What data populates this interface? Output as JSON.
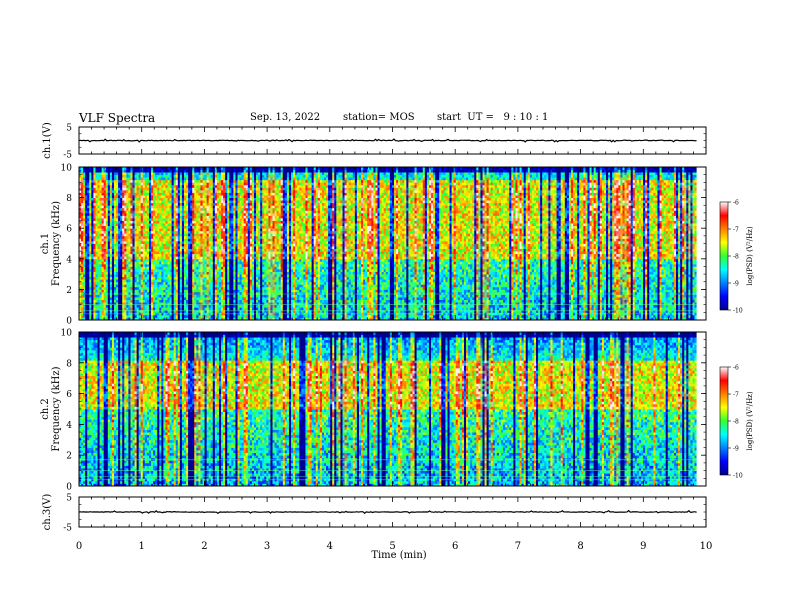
{
  "header": {
    "title": "VLF Spectra",
    "date": "Sep. 13, 2022",
    "station": "station= MOS",
    "start_time": "start  UT =   9 : 10 : 1"
  },
  "chart_data": [
    {
      "type": "line",
      "panel": "ch1-waveform",
      "ylabel": "ch.1(V)",
      "ylim": [
        -5,
        5
      ],
      "yticks": [
        "5",
        "-5"
      ],
      "x": [
        0,
        9.85
      ],
      "values": [
        0,
        0
      ]
    },
    {
      "type": "heatmap",
      "panel": "ch1-spectrogram",
      "ylabel": "ch.1\nFrequency (kHz)",
      "ylim": [
        0,
        10
      ],
      "yticks": [
        "0",
        "2",
        "4",
        "6",
        "8",
        "10"
      ],
      "xlim": [
        0,
        9.85
      ],
      "colorbar": {
        "label": "log(PSD) (V²/Hz)",
        "range": [
          -10,
          -6
        ],
        "ticks": [
          "-6",
          "-7",
          "-8",
          "-9",
          "-10"
        ]
      },
      "dominant_band_khz": [
        4,
        9
      ],
      "background_log_psd": -8.5
    },
    {
      "type": "heatmap",
      "panel": "ch2-spectrogram",
      "ylabel": "ch.2\nFrequency (kHz)",
      "ylim": [
        0,
        10
      ],
      "yticks": [
        "0",
        "2",
        "4",
        "6",
        "8",
        "10"
      ],
      "xlim": [
        0,
        9.85
      ],
      "colorbar": {
        "label": "log(PSD) (V²/Hz)",
        "range": [
          -10,
          -6
        ],
        "ticks": [
          "-6",
          "-7",
          "-8",
          "-9",
          "-10"
        ]
      },
      "dominant_band_khz": [
        5,
        8
      ],
      "background_log_psd": -8.3
    },
    {
      "type": "line",
      "panel": "ch3-waveform",
      "ylabel": "ch.3(V)",
      "ylim": [
        -5,
        5
      ],
      "yticks": [
        "5",
        "-5"
      ],
      "x": [
        0,
        9.85
      ],
      "values": [
        0,
        0
      ]
    }
  ],
  "x_axis": {
    "label": "Time  (min)",
    "ticks": [
      "0",
      "1",
      "2",
      "3",
      "4",
      "5",
      "6",
      "7",
      "8",
      "9",
      "10"
    ],
    "range": [
      0,
      10
    ]
  },
  "colors": {
    "axis": "#000000",
    "waveform": "#000000",
    "jet_low": "#000080",
    "jet_high": "#ff0000"
  }
}
